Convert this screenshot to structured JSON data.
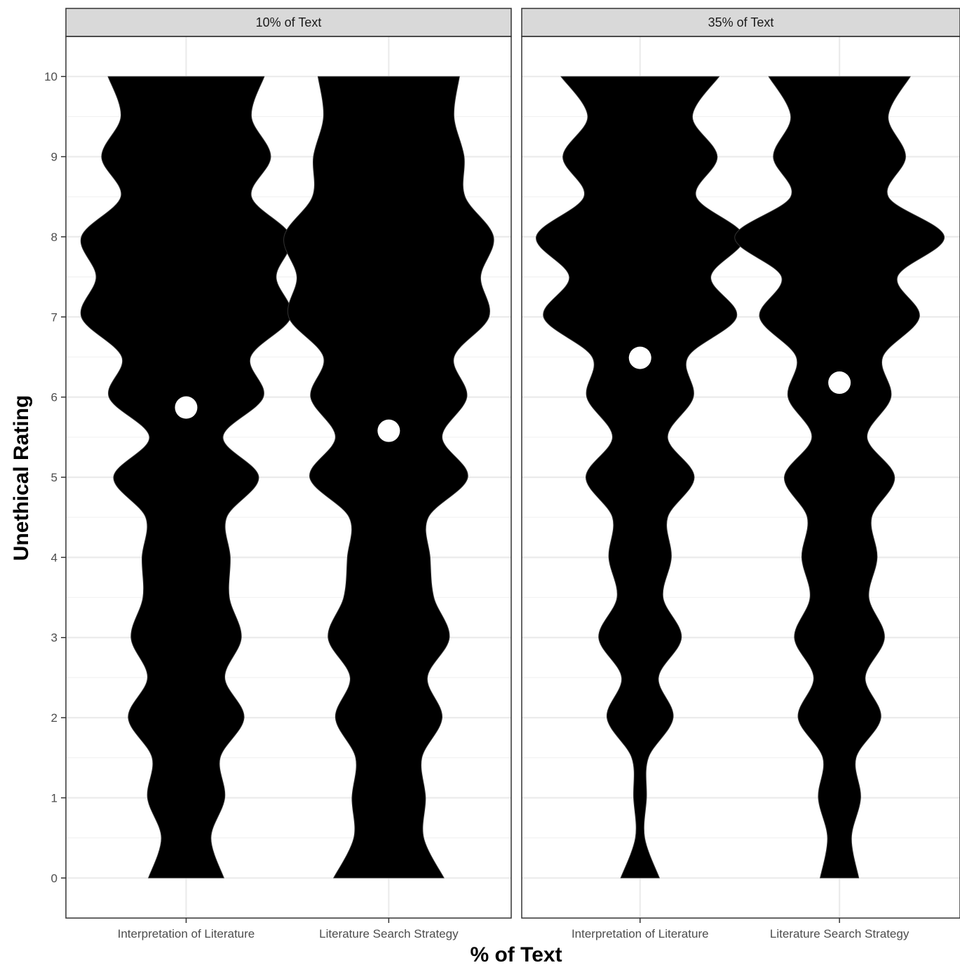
{
  "chart_data": {
    "type": "violin",
    "xlabel": "% of Text",
    "ylabel": "Unethical Rating",
    "ylim": [
      -0.5,
      10.5
    ],
    "yticks": [
      0,
      1,
      2,
      3,
      4,
      5,
      6,
      7,
      8,
      9,
      10
    ],
    "categories": [
      "Interpretation of Literature",
      "Literature Search Strategy"
    ],
    "grid": true,
    "colors": {
      "violin": "#000000",
      "mean_point": "#ffffff",
      "strip": "#d9d9d9"
    },
    "panels": [
      {
        "label": "10% of Text",
        "groups": [
          {
            "category": "Interpretation of Literature",
            "mean": 5.87,
            "density": [
              [
                0,
                0.41
              ],
              [
                0.5,
                0.27
              ],
              [
                1,
                0.42
              ],
              [
                1.5,
                0.37
              ],
              [
                2,
                0.63
              ],
              [
                2.5,
                0.42
              ],
              [
                3,
                0.6
              ],
              [
                3.5,
                0.47
              ],
              [
                4,
                0.48
              ],
              [
                4.5,
                0.44
              ],
              [
                5,
                0.79
              ],
              [
                5.5,
                0.4
              ],
              [
                6,
                0.84
              ],
              [
                6.5,
                0.7
              ],
              [
                7,
                1.14
              ],
              [
                7.5,
                0.98
              ],
              [
                8,
                1.14
              ],
              [
                8.5,
                0.71
              ],
              [
                9,
                0.92
              ],
              [
                9.5,
                0.71
              ],
              [
                10,
                0.85
              ]
            ]
          },
          {
            "category": "Literature Search Strategy",
            "mean": 5.58,
            "density": [
              [
                0,
                0.6
              ],
              [
                0.5,
                0.38
              ],
              [
                1,
                0.4
              ],
              [
                1.5,
                0.36
              ],
              [
                2,
                0.58
              ],
              [
                2.5,
                0.42
              ],
              [
                3,
                0.66
              ],
              [
                3.5,
                0.49
              ],
              [
                4,
                0.45
              ],
              [
                4.5,
                0.43
              ],
              [
                5,
                0.86
              ],
              [
                5.5,
                0.58
              ],
              [
                6,
                0.85
              ],
              [
                6.5,
                0.71
              ],
              [
                7,
                1.09
              ],
              [
                7.5,
                1.0
              ],
              [
                8,
                1.14
              ],
              [
                8.5,
                0.83
              ],
              [
                9,
                0.82
              ],
              [
                9.5,
                0.71
              ],
              [
                10,
                0.77
              ]
            ]
          }
        ]
      },
      {
        "label": "35% of Text",
        "groups": [
          {
            "category": "Interpretation of Literature",
            "mean": 6.49,
            "density": [
              [
                0,
                0.21
              ],
              [
                0.5,
                0.05
              ],
              [
                1,
                0.07
              ],
              [
                1.5,
                0.09
              ],
              [
                2,
                0.36
              ],
              [
                2.5,
                0.2
              ],
              [
                3,
                0.45
              ],
              [
                3.5,
                0.25
              ],
              [
                4,
                0.34
              ],
              [
                4.5,
                0.3
              ],
              [
                5,
                0.59
              ],
              [
                5.5,
                0.3
              ],
              [
                6,
                0.58
              ],
              [
                6.5,
                0.52
              ],
              [
                7,
                1.05
              ],
              [
                7.5,
                0.77
              ],
              [
                8,
                1.13
              ],
              [
                8.5,
                0.61
              ],
              [
                9,
                0.84
              ],
              [
                9.5,
                0.57
              ],
              [
                10,
                0.86
              ]
            ]
          },
          {
            "category": "Literature Search Strategy",
            "mean": 6.18,
            "density": [
              [
                0,
                0.21
              ],
              [
                0.5,
                0.13
              ],
              [
                1,
                0.23
              ],
              [
                1.5,
                0.18
              ],
              [
                2,
                0.45
              ],
              [
                2.5,
                0.28
              ],
              [
                3,
                0.49
              ],
              [
                3.5,
                0.32
              ],
              [
                4,
                0.41
              ],
              [
                4.5,
                0.35
              ],
              [
                5,
                0.6
              ],
              [
                5.5,
                0.3
              ],
              [
                6,
                0.56
              ],
              [
                6.5,
                0.47
              ],
              [
                7,
                0.87
              ],
              [
                7.5,
                0.63
              ],
              [
                8,
                1.14
              ],
              [
                8.5,
                0.53
              ],
              [
                9,
                0.72
              ],
              [
                9.5,
                0.53
              ],
              [
                10,
                0.77
              ]
            ]
          }
        ]
      }
    ]
  }
}
